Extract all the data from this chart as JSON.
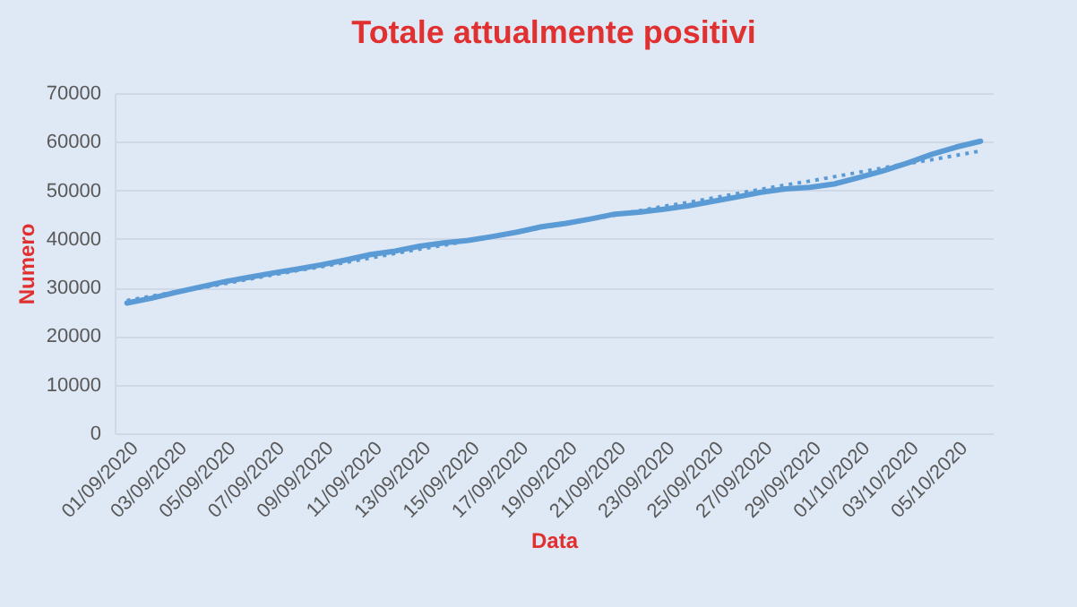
{
  "chart_data": {
    "type": "line",
    "title": "Totale attualmente positivi",
    "xlabel": "Data",
    "ylabel": "Numero",
    "categories": [
      "01/09/2020",
      null,
      "03/09/2020",
      null,
      "05/09/2020",
      null,
      "07/09/2020",
      null,
      "09/09/2020",
      null,
      "11/09/2020",
      null,
      "13/09/2020",
      null,
      "15/09/2020",
      null,
      "17/09/2020",
      null,
      "19/09/2020",
      null,
      "21/09/2020",
      null,
      "23/09/2020",
      null,
      "25/09/2020",
      null,
      "27/09/2020",
      null,
      "29/09/2020",
      null,
      "01/10/2020",
      null,
      "03/10/2020",
      null,
      "05/10/2020",
      null
    ],
    "series": [
      {
        "color": "#5b9bd5",
        "line_style": "solid",
        "values": [
          26800,
          27800,
          29000,
          30100,
          31200,
          32100,
          33000,
          33800,
          34700,
          35700,
          36800,
          37500,
          38500,
          39200,
          39700,
          40500,
          41400,
          42500,
          43200,
          44100,
          45100,
          45500,
          46100,
          46800,
          47700,
          48600,
          49600,
          50300,
          50600,
          51300,
          52600,
          54000,
          55600,
          57400,
          58900,
          60100
        ]
      },
      {
        "color": "#5b9bd5",
        "line_style": "dotted",
        "values": [
          27300,
          28200,
          29100,
          29900,
          30800,
          31700,
          32600,
          33500,
          34300,
          35200,
          36100,
          37000,
          37900,
          38700,
          39600,
          40500,
          41400,
          42300,
          43100,
          44000,
          44900,
          45800,
          46700,
          47500,
          48400,
          49300,
          50200,
          51100,
          51900,
          52800,
          53700,
          54600,
          55500,
          56300,
          57200,
          58100
        ]
      }
    ],
    "ylim": [
      0,
      70000
    ],
    "yticks": [
      0,
      10000,
      20000,
      30000,
      40000,
      50000,
      60000,
      70000
    ],
    "grid": "y"
  }
}
